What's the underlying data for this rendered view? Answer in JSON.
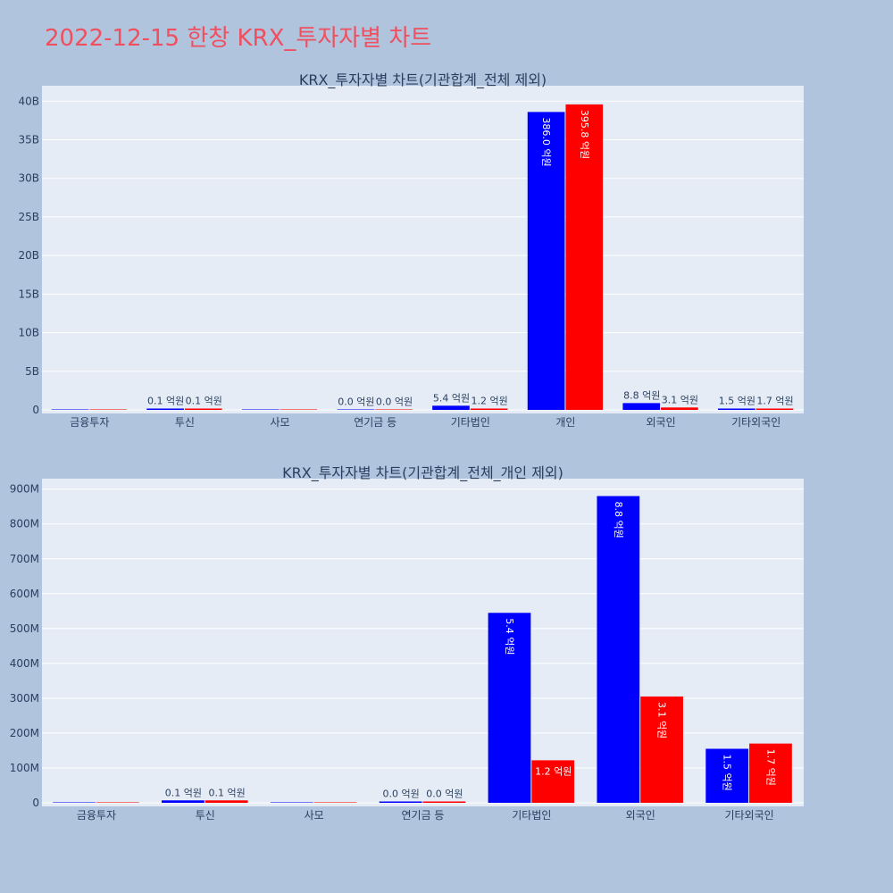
{
  "page": {
    "title": "2022-12-15 한창 KRX_투자자별 차트"
  },
  "colors": {
    "background": "#b0c4de",
    "plot_bg": "#e5ecf6",
    "grid": "#ffffff",
    "series_1": "#0000ff",
    "series_2": "#ff0000",
    "title": "#ef4f5f"
  },
  "chart_data": [
    {
      "type": "bar",
      "title": "KRX_투자자별 차트(기관합계_전체 제외)",
      "categories": [
        "금융투자",
        "투신",
        "사모",
        "연기금 등",
        "기타법인",
        "개인",
        "외국인",
        "기타외국인"
      ],
      "ylim": [
        0,
        42000000000
      ],
      "yticks": [
        0,
        5000000000,
        10000000000,
        15000000000,
        20000000000,
        25000000000,
        30000000000,
        35000000000,
        40000000000
      ],
      "ytick_labels": [
        "0",
        "5B",
        "10B",
        "15B",
        "20B",
        "25B",
        "30B",
        "35B",
        "40B"
      ],
      "grid": true,
      "legend": "none",
      "series": [
        {
          "color": "#0000ff",
          "values": [
            0,
            10000000,
            0,
            0,
            540000000,
            38600000000,
            880000000,
            150000000
          ],
          "labels": [
            "",
            "0.1 억원",
            "",
            "0.0 억원",
            "5.4 억원",
            "386.0 억원",
            "8.8 억원",
            "1.5 억원"
          ]
        },
        {
          "color": "#ff0000",
          "values": [
            0,
            10000000,
            0,
            0,
            120000000,
            39580000000,
            310000000,
            170000000
          ],
          "labels": [
            "",
            "0.1 억원",
            "",
            "0.0 억원",
            "1.2 억원",
            "395.8 억원",
            "3.1 억원",
            "1.7 억원"
          ]
        }
      ]
    },
    {
      "type": "bar",
      "title": "KRX_투자자별 차트(기관합계_전체_개인 제외)",
      "categories": [
        "금융투자",
        "투신",
        "사모",
        "연기금 등",
        "기타법인",
        "외국인",
        "기타외국인"
      ],
      "ylim": [
        0,
        930000000
      ],
      "yticks": [
        0,
        100000000,
        200000000,
        300000000,
        400000000,
        500000000,
        600000000,
        700000000,
        800000000,
        900000000
      ],
      "ytick_labels": [
        "0",
        "100M",
        "200M",
        "300M",
        "400M",
        "500M",
        "600M",
        "700M",
        "800M",
        "900M"
      ],
      "grid": true,
      "legend": "none",
      "series": [
        {
          "color": "#0000ff",
          "values": [
            0,
            7000000,
            0,
            1000000,
            545000000,
            880000000,
            155000000
          ],
          "labels": [
            "",
            "0.1 억원",
            "",
            "0.0 억원",
            "5.4 억원",
            "8.8 억원",
            "1.5 억원"
          ]
        },
        {
          "color": "#ff0000",
          "values": [
            0,
            7000000,
            0,
            1000000,
            122000000,
            305000000,
            170000000
          ],
          "labels": [
            "",
            "0.1 억원",
            "",
            "0.0 억원",
            "1.2 억원",
            "3.1 억원",
            "1.7 억원"
          ]
        }
      ]
    }
  ]
}
